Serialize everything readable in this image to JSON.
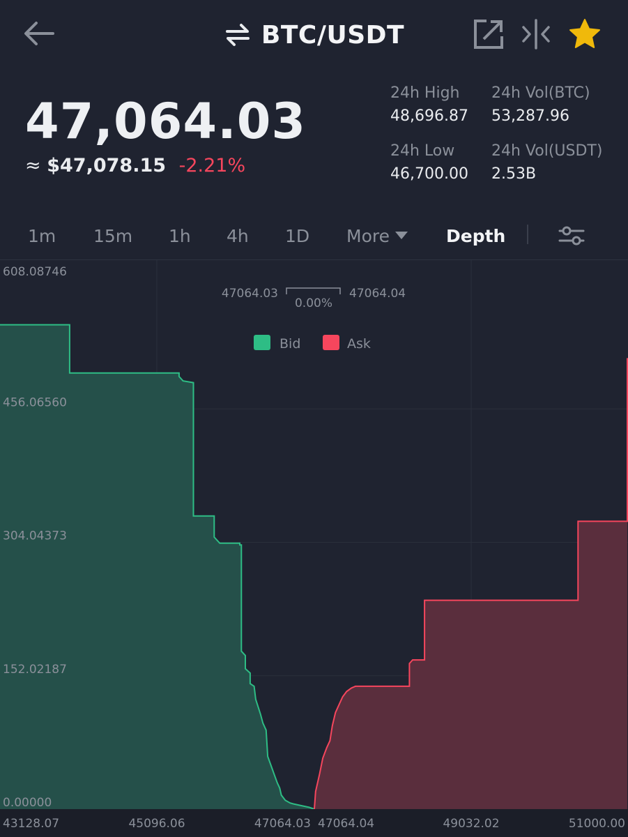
{
  "header": {
    "pair": "BTC/USDT",
    "icons": [
      "back-arrow-icon",
      "swap-arrows-icon",
      "external-link-icon",
      "compare-icon",
      "favorite-star-icon"
    ]
  },
  "price": {
    "last": "47,064.03",
    "approx_prefix": "≈",
    "fiat": "$47,078.15",
    "change": "-2.21%"
  },
  "stats": {
    "high_label": "24h High",
    "high_value": "48,696.87",
    "vol_btc_label": "24h Vol(BTC)",
    "vol_btc_value": "53,287.96",
    "low_label": "24h Low",
    "low_value": "46,700.00",
    "vol_usdt_label": "24h Vol(USDT)",
    "vol_usdt_value": "2.53B"
  },
  "tabs": {
    "items": [
      "1m",
      "15m",
      "1h",
      "4h",
      "1D",
      "More",
      "Depth"
    ],
    "active": "Depth"
  },
  "colors": {
    "bg": "#1f2330",
    "bid": "#2ebd85",
    "ask": "#f6465d",
    "up_down_negative": "#f6465d",
    "favorite": "#f0b90b"
  },
  "chart_data": {
    "type": "area",
    "title": "",
    "y_ticks": [
      "608.08746",
      "456.06560",
      "304.04373",
      "152.02187",
      "0.00000"
    ],
    "x_ticks": [
      "43128.07",
      "45096.06",
      "47064.03",
      "47064.04",
      "49032.02",
      "51000.00"
    ],
    "ylim": [
      0,
      608.08746
    ],
    "xlim": [
      43128.07,
      51000.0
    ],
    "best_bid": "47064.03",
    "best_ask": "47064.04",
    "spread": "0.00%",
    "legend": [
      "Bid",
      "Ask"
    ],
    "legend_position": "top-center",
    "grid": true,
    "series": [
      {
        "name": "Bid",
        "color": "#2ebd85",
        "points": [
          [
            43128.07,
            552
          ],
          [
            44000,
            552
          ],
          [
            44000,
            497
          ],
          [
            45370,
            497
          ],
          [
            45370,
            493
          ],
          [
            45420,
            488
          ],
          [
            45550,
            486
          ],
          [
            45550,
            334
          ],
          [
            45810,
            334
          ],
          [
            45810,
            310
          ],
          [
            45880,
            303
          ],
          [
            46130,
            303
          ],
          [
            46130,
            301
          ],
          [
            46150,
            301
          ],
          [
            46150,
            180
          ],
          [
            46200,
            175
          ],
          [
            46200,
            160
          ],
          [
            46260,
            155
          ],
          [
            46260,
            143
          ],
          [
            46310,
            140
          ],
          [
            46330,
            125
          ],
          [
            46390,
            108
          ],
          [
            46420,
            98
          ],
          [
            46460,
            90
          ],
          [
            46480,
            60
          ],
          [
            46520,
            50
          ],
          [
            46560,
            40
          ],
          [
            46600,
            30
          ],
          [
            46630,
            24
          ],
          [
            46650,
            16
          ],
          [
            46700,
            10
          ],
          [
            46760,
            7
          ],
          [
            46800,
            6
          ],
          [
            46900,
            4
          ],
          [
            47000,
            2
          ],
          [
            47064.03,
            0
          ]
        ]
      },
      {
        "name": "Ask",
        "color": "#f6465d",
        "points": [
          [
            47064.04,
            0
          ],
          [
            47080,
            20
          ],
          [
            47130,
            40
          ],
          [
            47170,
            58
          ],
          [
            47220,
            70
          ],
          [
            47260,
            78
          ],
          [
            47290,
            95
          ],
          [
            47330,
            110
          ],
          [
            47380,
            120
          ],
          [
            47420,
            128
          ],
          [
            47470,
            134
          ],
          [
            47530,
            138
          ],
          [
            47580,
            140
          ],
          [
            47600,
            140
          ],
          [
            48260,
            140
          ],
          [
            48260,
            166
          ],
          [
            48300,
            170
          ],
          [
            48450,
            170
          ],
          [
            48450,
            238
          ],
          [
            50380,
            238
          ],
          [
            50380,
            328
          ],
          [
            51000,
            328
          ],
          [
            51000,
            514
          ]
        ]
      }
    ]
  }
}
